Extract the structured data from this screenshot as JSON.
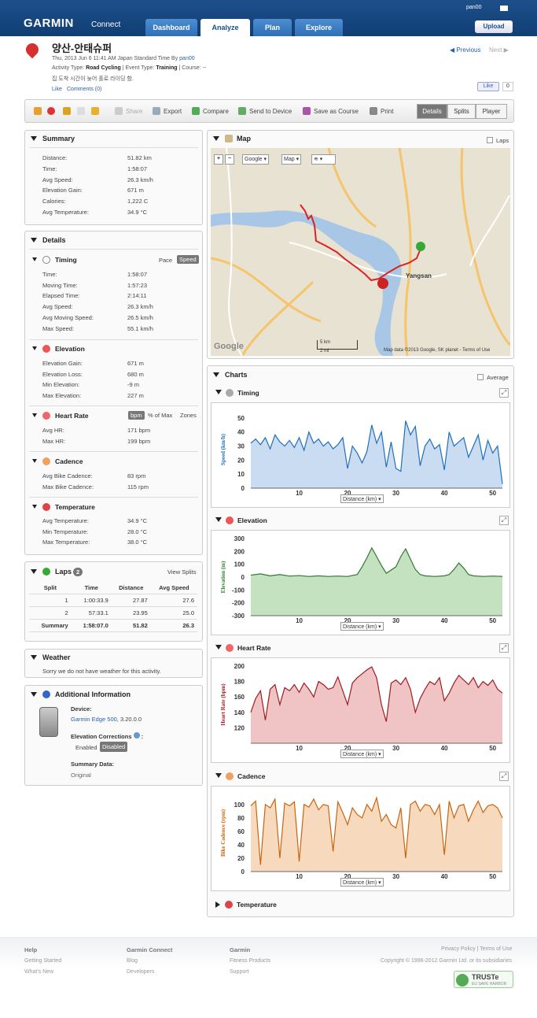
{
  "header": {
    "logo": "GARMIN",
    "logo_sub": "Connect",
    "tabs": [
      "Dashboard",
      "Analyze",
      "Plan",
      "Explore"
    ],
    "user": "pan00",
    "upload": "Upload"
  },
  "activity": {
    "title": "양산-안태슈퍼",
    "date_line_prefix": "Thu, 2013 Jun 6 11:41 AM Japan Standard Time By",
    "user": "pan00",
    "type_label": "Activity Type:",
    "type_value": "Road Cycling",
    "event_label": "| Event Type:",
    "event_value": "Training",
    "course": "| Course: --",
    "description": "집 도착 시간이 늦어 홀로 라이딩 함.",
    "like": "Like",
    "comments": "Comments (0)",
    "prev": "Previous",
    "next": "Next",
    "fb_like": "Like",
    "fb_count": "0"
  },
  "toolbar": {
    "share": "Share",
    "export": "Export",
    "compare": "Compare",
    "send": "Send to Device",
    "save_course": "Save as Course",
    "print": "Print",
    "views": [
      "Details",
      "Splits",
      "Player"
    ]
  },
  "summary": {
    "title": "Summary",
    "rows": [
      [
        "Distance:",
        "51.82 km"
      ],
      [
        "Time:",
        "1:58:07"
      ],
      [
        "Avg Speed:",
        "26.3 km/h"
      ],
      [
        "Elevation Gain:",
        "671 m"
      ],
      [
        "Calories:",
        "1,222 C"
      ],
      [
        "Avg Temperature:",
        "34.9 °C"
      ]
    ]
  },
  "details": {
    "title": "Details",
    "timing": {
      "title": "Timing",
      "pace": "Pace",
      "speed": "Speed",
      "rows": [
        [
          "Time:",
          "1:58:07"
        ],
        [
          "Moving Time:",
          "1:57:23"
        ],
        [
          "Elapsed Time:",
          "2:14:11"
        ],
        [
          "Avg Speed:",
          "26.3 km/h"
        ],
        [
          "Avg Moving Speed:",
          "26.5 km/h"
        ],
        [
          "Max Speed:",
          "55.1 km/h"
        ]
      ]
    },
    "elevation": {
      "title": "Elevation",
      "rows": [
        [
          "Elevation Gain:",
          "671 m"
        ],
        [
          "Elevation Loss:",
          "680 m"
        ],
        [
          "Min Elevation:",
          "-9 m"
        ],
        [
          "Max Elevation:",
          "227 m"
        ]
      ]
    },
    "hr": {
      "title": "Heart Rate",
      "bpm": "bpm",
      "pct": "% of Max",
      "zones": "Zones",
      "rows": [
        [
          "Avg HR:",
          "171 bpm"
        ],
        [
          "Max HR:",
          "199 bpm"
        ]
      ]
    },
    "cadence": {
      "title": "Cadence",
      "rows": [
        [
          "Avg Bike Cadence:",
          "83 rpm"
        ],
        [
          "Max Bike Cadence:",
          "115 rpm"
        ]
      ]
    },
    "temperature": {
      "title": "Temperature",
      "rows": [
        [
          "Avg Temperature:",
          "34.9 °C"
        ],
        [
          "Min Temperature:",
          "28.0 °C"
        ],
        [
          "Max Temperature:",
          "38.0 °C"
        ]
      ]
    }
  },
  "laps": {
    "title": "Laps",
    "count": "2",
    "view_splits": "View Splits",
    "headers": [
      "Split",
      "Time",
      "Distance",
      "Avg Speed"
    ],
    "rows": [
      [
        "1",
        "1:00:33.9",
        "27.87",
        "27.6"
      ],
      [
        "2",
        "57:33.1",
        "23.95",
        "25.0"
      ],
      [
        "Summary",
        "1:58:07.0",
        "51.82",
        "26.3"
      ]
    ]
  },
  "weather": {
    "title": "Weather",
    "text": "Sorry we do not have weather for this activity."
  },
  "additional": {
    "title": "Additional Information",
    "device_label": "Device:",
    "device": "Garmin Edge 500",
    "device_ver": ", 3.20.0.0",
    "elev_corr": "Elevation Corrections",
    "enabled": "Enabled",
    "disabled": "Disabled",
    "summary_label": "Summary Data:",
    "summary_value": "Original"
  },
  "map": {
    "title": "Map",
    "laps": "Laps",
    "google": "Google",
    "maptype": "Map",
    "city": "Yangsan",
    "scale_km": "5 km",
    "scale_mi": "2 mi",
    "attribution": "Map data ©2013 Google, SK planet - Terms of Use",
    "google_logo": "Google"
  },
  "charts": {
    "title": "Charts",
    "average": "Average",
    "xlabel": "Distance (km)",
    "temperature": "Temperature"
  },
  "chart_data": [
    {
      "type": "line",
      "title": "Timing",
      "ylabel": "Speed (km/h)",
      "ylim": [
        0,
        55
      ],
      "yticks": [
        0,
        10,
        20,
        30,
        40,
        50
      ],
      "xticks": [
        10,
        20,
        30,
        40,
        50
      ],
      "xlim": [
        0,
        52
      ],
      "color": "#1f6fb8",
      "fill": "#c9dcf2",
      "series": [
        {
          "x": [
            0,
            1,
            2,
            3,
            4,
            5,
            6,
            7,
            8,
            9,
            10,
            11,
            12,
            13,
            14,
            15,
            16,
            17,
            18,
            19,
            20,
            21,
            22,
            23,
            24,
            25,
            26,
            27,
            28,
            29,
            30,
            31,
            32,
            33,
            34,
            35,
            36,
            37,
            38,
            39,
            40,
            41,
            42,
            43,
            44,
            45,
            46,
            47,
            48,
            49,
            50,
            51,
            52
          ],
          "y": [
            32,
            35,
            31,
            36,
            28,
            38,
            33,
            30,
            34,
            29,
            36,
            27,
            40,
            32,
            35,
            30,
            33,
            28,
            31,
            36,
            14,
            30,
            25,
            18,
            26,
            45,
            32,
            40,
            15,
            33,
            14,
            12,
            48,
            38,
            44,
            16,
            30,
            35,
            28,
            31,
            13,
            40,
            30,
            33,
            36,
            22,
            30,
            38,
            20,
            34,
            25,
            30,
            3
          ]
        }
      ]
    },
    {
      "type": "area",
      "title": "Elevation",
      "ylabel": "Elevation (m)",
      "ylim": [
        -300,
        300
      ],
      "yticks": [
        -300,
        -200,
        -100,
        0,
        100,
        200,
        300
      ],
      "xticks": [
        10,
        20,
        30,
        40,
        50
      ],
      "xlim": [
        0,
        52
      ],
      "color": "#2e7a2e",
      "fill": "#c5e2c0",
      "series": [
        {
          "x": [
            0,
            2,
            4,
            6,
            8,
            10,
            12,
            14,
            16,
            18,
            20,
            22,
            23,
            24,
            25,
            26,
            27,
            28,
            30,
            31,
            32,
            33,
            34,
            35,
            36,
            38,
            40,
            41,
            42,
            43,
            44,
            45,
            46,
            48,
            50,
            52
          ],
          "y": [
            15,
            25,
            10,
            20,
            8,
            12,
            5,
            10,
            5,
            8,
            5,
            20,
            80,
            150,
            227,
            160,
            90,
            30,
            80,
            160,
            220,
            140,
            60,
            20,
            10,
            5,
            10,
            20,
            60,
            110,
            70,
            20,
            10,
            5,
            8,
            5
          ]
        }
      ]
    },
    {
      "type": "area",
      "title": "Heart Rate",
      "ylabel": "Heart Rate (bpm)",
      "ylim": [
        100,
        200
      ],
      "yticks": [
        120,
        140,
        160,
        180,
        200
      ],
      "xticks": [
        10,
        20,
        30,
        40,
        50
      ],
      "xlim": [
        0,
        52
      ],
      "color": "#a01c20",
      "fill": "#f0c4c4",
      "series": [
        {
          "x": [
            0,
            1,
            2,
            3,
            4,
            5,
            6,
            7,
            8,
            9,
            10,
            11,
            12,
            13,
            14,
            15,
            16,
            17,
            18,
            19,
            20,
            21,
            22,
            23,
            24,
            25,
            26,
            27,
            28,
            29,
            30,
            31,
            32,
            33,
            34,
            35,
            36,
            37,
            38,
            39,
            40,
            41,
            42,
            43,
            44,
            45,
            46,
            47,
            48,
            49,
            50,
            51,
            52
          ],
          "y": [
            140,
            158,
            168,
            130,
            170,
            176,
            150,
            172,
            168,
            176,
            166,
            178,
            170,
            160,
            180,
            176,
            170,
            172,
            186,
            168,
            150,
            178,
            185,
            190,
            195,
            199,
            185,
            150,
            128,
            178,
            182,
            176,
            185,
            170,
            140,
            158,
            170,
            180,
            176,
            185,
            155,
            165,
            178,
            188,
            182,
            176,
            185,
            172,
            180,
            175,
            182,
            170,
            165
          ]
        }
      ]
    },
    {
      "type": "area",
      "title": "Cadence",
      "ylabel": "Bike Cadence (rpm)",
      "ylim": [
        0,
        115
      ],
      "yticks": [
        0,
        20,
        40,
        60,
        80,
        100
      ],
      "xticks": [
        10,
        20,
        30,
        40,
        50
      ],
      "xlim": [
        0,
        52
      ],
      "color": "#c9650e",
      "fill": "#f7d9bd",
      "series": [
        {
          "x": [
            0,
            1,
            2,
            3,
            4,
            5,
            6,
            7,
            8,
            9,
            10,
            11,
            12,
            13,
            14,
            15,
            16,
            17,
            18,
            19,
            20,
            21,
            22,
            23,
            24,
            25,
            26,
            27,
            28,
            29,
            30,
            31,
            32,
            33,
            34,
            35,
            36,
            37,
            38,
            39,
            40,
            41,
            42,
            43,
            44,
            45,
            46,
            47,
            48,
            49,
            50,
            51,
            52
          ],
          "y": [
            98,
            105,
            10,
            100,
            95,
            108,
            20,
            102,
            98,
            104,
            15,
            100,
            96,
            108,
            92,
            100,
            98,
            30,
            104,
            88,
            70,
            95,
            85,
            80,
            100,
            90,
            110,
            75,
            85,
            70,
            65,
            95,
            20,
            100,
            105,
            90,
            100,
            98,
            85,
            100,
            25,
            105,
            80,
            98,
            100,
            75,
            92,
            105,
            88,
            98,
            100,
            95,
            80
          ]
        }
      ]
    }
  ],
  "footer": {
    "help": "Help",
    "help1": "Getting Started",
    "help2": "What's New",
    "gc": "Garmin Connect",
    "gc1": "Blog",
    "gc2": "Developers",
    "garmin": "Garmin",
    "g1": "Fitness Products",
    "g2": "Support",
    "privacy": "Privacy Policy | Terms of Use",
    "copyright": "Copyright © 1996-2012 Garmin Ltd. or its subsidiaries",
    "truste": "TRUSTe",
    "truste_sub": "EU SAFE HARBOR"
  }
}
